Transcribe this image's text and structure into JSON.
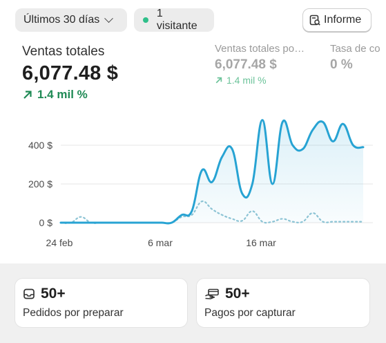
{
  "filters": {
    "date_range": "Últimos 30 días",
    "visitors": "1 visitante",
    "report_button": "Informe"
  },
  "metrics": [
    {
      "label": "Ventas totales",
      "value": "6,077.48 $",
      "delta": "1.4 mil %"
    },
    {
      "label": "Ventas totales po…",
      "value": "6,077.48 $",
      "delta": "1.4 mil %"
    },
    {
      "label": "Tasa de co",
      "value": "0 %"
    }
  ],
  "colors": {
    "primary_line": "#27a3d3",
    "secondary_line": "#8bc3d4",
    "positive": "#1f8a55"
  },
  "chart_data": {
    "type": "line",
    "y_ticks": [
      "400 $",
      "200 $",
      "0 $"
    ],
    "x_ticks": [
      "24 feb",
      "6 mar",
      "16 mar"
    ],
    "ylim": [
      0,
      560
    ],
    "grid": true,
    "x": [
      0,
      1,
      2,
      3,
      4,
      5,
      6,
      7,
      8,
      9,
      10,
      11,
      12,
      13,
      14,
      15,
      16,
      17,
      18,
      19,
      20,
      21,
      22,
      23,
      24,
      25,
      26,
      27,
      28,
      29,
      30
    ],
    "series": [
      {
        "values": [
          0,
          0,
          0,
          0,
          0,
          0,
          0,
          0,
          0,
          0,
          0,
          0,
          40,
          60,
          270,
          210,
          340,
          380,
          150,
          200,
          530,
          200,
          520,
          400,
          380,
          480,
          520,
          420,
          510,
          400,
          390
        ]
      },
      {
        "values": [
          0,
          0,
          30,
          0,
          0,
          0,
          0,
          0,
          0,
          0,
          0,
          0,
          30,
          40,
          110,
          70,
          40,
          20,
          10,
          60,
          5,
          5,
          20,
          5,
          5,
          50,
          5,
          5,
          5,
          5,
          5
        ]
      }
    ]
  },
  "cards": [
    {
      "count": "50+",
      "label": "Pedidos por preparar"
    },
    {
      "count": "50+",
      "label": "Pagos por capturar"
    }
  ]
}
